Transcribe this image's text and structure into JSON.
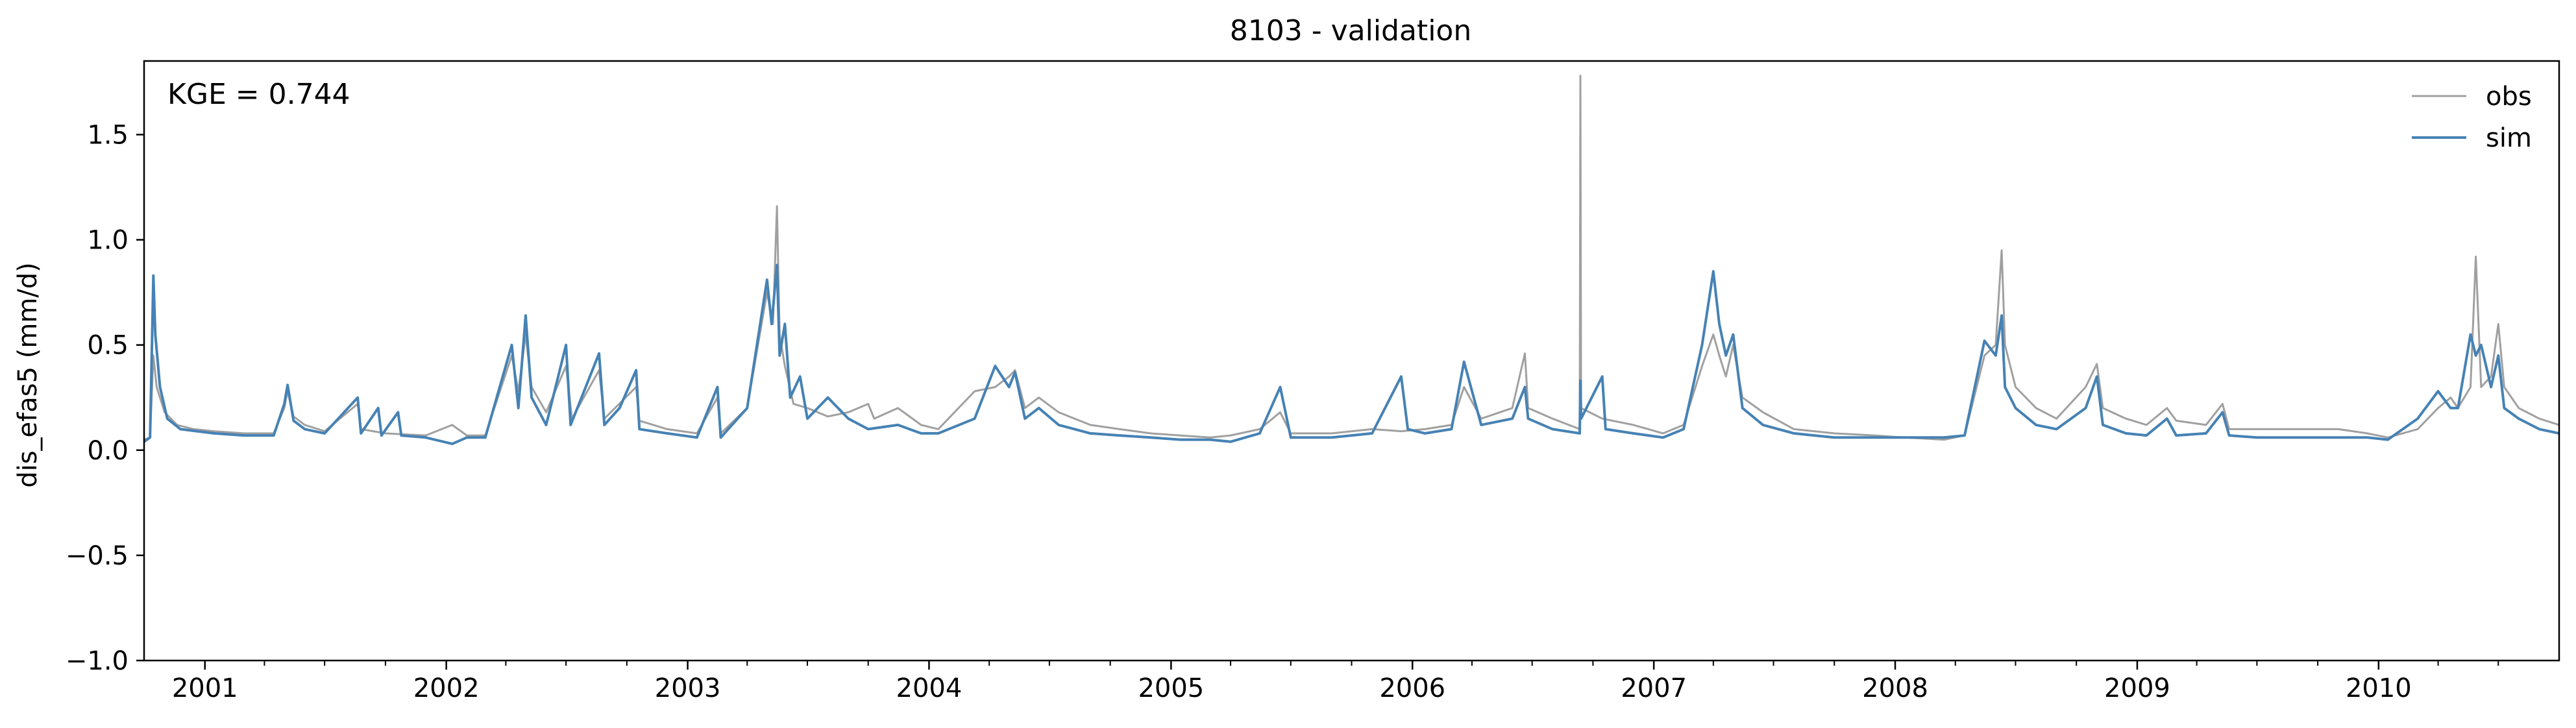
{
  "chart_data": {
    "type": "line",
    "title": "8103 - validation",
    "xlabel": "",
    "ylabel": "dis_efas5 (mm/d)",
    "annotation": "KGE = 0.744",
    "legend_position": "top-right",
    "grid": false,
    "xlim": [
      "2000-10-01",
      "2010-10-01"
    ],
    "ylim": [
      -1.0,
      1.85
    ],
    "yticks": [
      -1.0,
      -0.5,
      0.0,
      0.5,
      1.0,
      1.5
    ],
    "ytick_labels": [
      "−1.0",
      "−0.5",
      "0.0",
      "0.5",
      "1.0",
      "1.5"
    ],
    "xticks": [
      "2001-01-01",
      "2002-01-01",
      "2003-01-01",
      "2004-01-01",
      "2005-01-01",
      "2006-01-01",
      "2007-01-01",
      "2008-01-01",
      "2009-01-01",
      "2010-01-01"
    ],
    "xtick_labels": [
      "2001",
      "2002",
      "2003",
      "2004",
      "2005",
      "2006",
      "2007",
      "2008",
      "2009",
      "2010"
    ],
    "series": [
      {
        "name": "obs",
        "color": "#a0a0a0",
        "points": [
          [
            "2000-10-01",
            0.05
          ],
          [
            "2000-10-10",
            0.06
          ],
          [
            "2000-10-15",
            0.45
          ],
          [
            "2000-10-20",
            0.3
          ],
          [
            "2000-11-01",
            0.18
          ],
          [
            "2000-11-20",
            0.12
          ],
          [
            "2000-12-15",
            0.1
          ],
          [
            "2001-01-15",
            0.09
          ],
          [
            "2001-03-01",
            0.08
          ],
          [
            "2001-04-15",
            0.08
          ],
          [
            "2001-05-01",
            0.2
          ],
          [
            "2001-05-06",
            0.28
          ],
          [
            "2001-05-15",
            0.16
          ],
          [
            "2001-06-01",
            0.12
          ],
          [
            "2001-07-01",
            0.09
          ],
          [
            "2001-08-20",
            0.22
          ],
          [
            "2001-08-25",
            0.1
          ],
          [
            "2001-10-01",
            0.08
          ],
          [
            "2001-12-01",
            0.07
          ],
          [
            "2002-01-10",
            0.12
          ],
          [
            "2002-02-01",
            0.07
          ],
          [
            "2002-03-01",
            0.07
          ],
          [
            "2002-04-10",
            0.45
          ],
          [
            "2002-04-20",
            0.28
          ],
          [
            "2002-05-01",
            0.55
          ],
          [
            "2002-05-10",
            0.3
          ],
          [
            "2002-06-01",
            0.18
          ],
          [
            "2002-07-01",
            0.4
          ],
          [
            "2002-07-10",
            0.15
          ],
          [
            "2002-08-20",
            0.38
          ],
          [
            "2002-08-28",
            0.15
          ],
          [
            "2002-10-15",
            0.3
          ],
          [
            "2002-10-20",
            0.14
          ],
          [
            "2002-12-01",
            0.1
          ],
          [
            "2003-01-15",
            0.08
          ],
          [
            "2003-02-15",
            0.25
          ],
          [
            "2003-02-20",
            0.08
          ],
          [
            "2003-04-01",
            0.2
          ],
          [
            "2003-05-01",
            0.75
          ],
          [
            "2003-05-10",
            0.6
          ],
          [
            "2003-05-16",
            1.16
          ],
          [
            "2003-05-20",
            0.55
          ],
          [
            "2003-05-28",
            0.4
          ],
          [
            "2003-06-10",
            0.22
          ],
          [
            "2003-07-01",
            0.2
          ],
          [
            "2003-08-01",
            0.16
          ],
          [
            "2003-09-01",
            0.18
          ],
          [
            "2003-10-01",
            0.22
          ],
          [
            "2003-10-10",
            0.15
          ],
          [
            "2003-11-15",
            0.2
          ],
          [
            "2003-12-20",
            0.12
          ],
          [
            "2004-01-15",
            0.1
          ],
          [
            "2004-03-10",
            0.28
          ],
          [
            "2004-04-10",
            0.3
          ],
          [
            "2004-05-01",
            0.35
          ],
          [
            "2004-05-10",
            0.38
          ],
          [
            "2004-05-25",
            0.2
          ],
          [
            "2004-06-15",
            0.25
          ],
          [
            "2004-07-15",
            0.18
          ],
          [
            "2004-09-01",
            0.12
          ],
          [
            "2004-10-15",
            0.1
          ],
          [
            "2004-12-01",
            0.08
          ],
          [
            "2005-01-15",
            0.07
          ],
          [
            "2005-03-01",
            0.06
          ],
          [
            "2005-04-01",
            0.07
          ],
          [
            "2005-05-15",
            0.1
          ],
          [
            "2005-06-15",
            0.18
          ],
          [
            "2005-07-01",
            0.08
          ],
          [
            "2005-09-01",
            0.08
          ],
          [
            "2005-11-01",
            0.1
          ],
          [
            "2005-12-15",
            0.09
          ],
          [
            "2006-01-20",
            0.1
          ],
          [
            "2006-03-01",
            0.12
          ],
          [
            "2006-03-20",
            0.3
          ],
          [
            "2006-04-15",
            0.15
          ],
          [
            "2006-06-01",
            0.2
          ],
          [
            "2006-06-20",
            0.46
          ],
          [
            "2006-06-25",
            0.2
          ],
          [
            "2006-08-01",
            0.15
          ],
          [
            "2006-09-11",
            0.1
          ],
          [
            "2006-09-12",
            1.78
          ],
          [
            "2006-09-13",
            0.2
          ],
          [
            "2006-10-15",
            0.15
          ],
          [
            "2006-12-01",
            0.12
          ],
          [
            "2007-01-15",
            0.08
          ],
          [
            "2007-02-15",
            0.12
          ],
          [
            "2007-03-15",
            0.4
          ],
          [
            "2007-04-01",
            0.55
          ],
          [
            "2007-04-10",
            0.45
          ],
          [
            "2007-04-20",
            0.35
          ],
          [
            "2007-05-01",
            0.5
          ],
          [
            "2007-05-15",
            0.25
          ],
          [
            "2007-06-15",
            0.18
          ],
          [
            "2007-08-01",
            0.1
          ],
          [
            "2007-10-01",
            0.08
          ],
          [
            "2007-12-01",
            0.07
          ],
          [
            "2008-01-15",
            0.06
          ],
          [
            "2008-03-15",
            0.05
          ],
          [
            "2008-04-15",
            0.07
          ],
          [
            "2008-05-15",
            0.45
          ],
          [
            "2008-06-01",
            0.5
          ],
          [
            "2008-06-10",
            0.95
          ],
          [
            "2008-06-15",
            0.5
          ],
          [
            "2008-07-01",
            0.3
          ],
          [
            "2008-08-01",
            0.2
          ],
          [
            "2008-09-01",
            0.15
          ],
          [
            "2008-10-15",
            0.3
          ],
          [
            "2008-11-01",
            0.41
          ],
          [
            "2008-11-10",
            0.2
          ],
          [
            "2008-12-15",
            0.15
          ],
          [
            "2009-01-15",
            0.12
          ],
          [
            "2009-02-15",
            0.2
          ],
          [
            "2009-03-01",
            0.14
          ],
          [
            "2009-04-15",
            0.12
          ],
          [
            "2009-05-10",
            0.22
          ],
          [
            "2009-05-20",
            0.1
          ],
          [
            "2009-07-01",
            0.1
          ],
          [
            "2009-09-01",
            0.1
          ],
          [
            "2009-11-01",
            0.1
          ],
          [
            "2009-12-15",
            0.08
          ],
          [
            "2010-01-15",
            0.06
          ],
          [
            "2010-03-01",
            0.1
          ],
          [
            "2010-04-01",
            0.2
          ],
          [
            "2010-04-20",
            0.25
          ],
          [
            "2010-05-01",
            0.2
          ],
          [
            "2010-05-20",
            0.3
          ],
          [
            "2010-05-28",
            0.92
          ],
          [
            "2010-06-05",
            0.3
          ],
          [
            "2010-06-20",
            0.35
          ],
          [
            "2010-07-01",
            0.6
          ],
          [
            "2010-07-10",
            0.3
          ],
          [
            "2010-08-01",
            0.2
          ],
          [
            "2010-09-01",
            0.15
          ],
          [
            "2010-10-01",
            0.12
          ]
        ]
      },
      {
        "name": "sim",
        "color": "#4682b4",
        "points": [
          [
            "2000-10-01",
            0.04
          ],
          [
            "2000-10-10",
            0.06
          ],
          [
            "2000-10-15",
            0.83
          ],
          [
            "2000-10-18",
            0.55
          ],
          [
            "2000-10-25",
            0.3
          ],
          [
            "2000-11-05",
            0.15
          ],
          [
            "2000-11-25",
            0.1
          ],
          [
            "2000-12-20",
            0.09
          ],
          [
            "2001-01-15",
            0.08
          ],
          [
            "2001-03-01",
            0.07
          ],
          [
            "2001-04-15",
            0.07
          ],
          [
            "2001-05-01",
            0.22
          ],
          [
            "2001-05-06",
            0.31
          ],
          [
            "2001-05-15",
            0.14
          ],
          [
            "2001-06-01",
            0.1
          ],
          [
            "2001-07-01",
            0.08
          ],
          [
            "2001-08-20",
            0.25
          ],
          [
            "2001-08-25",
            0.08
          ],
          [
            "2001-09-20",
            0.2
          ],
          [
            "2001-09-25",
            0.07
          ],
          [
            "2001-10-20",
            0.18
          ],
          [
            "2001-10-25",
            0.07
          ],
          [
            "2001-12-01",
            0.06
          ],
          [
            "2002-01-10",
            0.03
          ],
          [
            "2002-02-01",
            0.06
          ],
          [
            "2002-03-01",
            0.06
          ],
          [
            "2002-04-10",
            0.5
          ],
          [
            "2002-04-20",
            0.2
          ],
          [
            "2002-05-01",
            0.64
          ],
          [
            "2002-05-10",
            0.25
          ],
          [
            "2002-06-01",
            0.12
          ],
          [
            "2002-07-01",
            0.5
          ],
          [
            "2002-07-08",
            0.12
          ],
          [
            "2002-08-20",
            0.46
          ],
          [
            "2002-08-28",
            0.12
          ],
          [
            "2002-09-20",
            0.2
          ],
          [
            "2002-10-15",
            0.38
          ],
          [
            "2002-10-20",
            0.1
          ],
          [
            "2002-12-01",
            0.08
          ],
          [
            "2003-01-15",
            0.06
          ],
          [
            "2003-02-15",
            0.3
          ],
          [
            "2003-02-20",
            0.06
          ],
          [
            "2003-04-01",
            0.2
          ],
          [
            "2003-05-01",
            0.81
          ],
          [
            "2003-05-08",
            0.6
          ],
          [
            "2003-05-16",
            0.88
          ],
          [
            "2003-05-20",
            0.45
          ],
          [
            "2003-05-28",
            0.6
          ],
          [
            "2003-06-05",
            0.25
          ],
          [
            "2003-06-20",
            0.35
          ],
          [
            "2003-07-01",
            0.15
          ],
          [
            "2003-08-01",
            0.25
          ],
          [
            "2003-09-01",
            0.15
          ],
          [
            "2003-10-01",
            0.1
          ],
          [
            "2003-11-15",
            0.12
          ],
          [
            "2003-12-20",
            0.08
          ],
          [
            "2004-01-15",
            0.08
          ],
          [
            "2004-03-10",
            0.15
          ],
          [
            "2004-04-10",
            0.4
          ],
          [
            "2004-05-01",
            0.3
          ],
          [
            "2004-05-10",
            0.37
          ],
          [
            "2004-05-25",
            0.15
          ],
          [
            "2004-06-15",
            0.2
          ],
          [
            "2004-07-15",
            0.12
          ],
          [
            "2004-09-01",
            0.08
          ],
          [
            "2004-10-15",
            0.07
          ],
          [
            "2004-12-01",
            0.06
          ],
          [
            "2005-01-15",
            0.05
          ],
          [
            "2005-03-01",
            0.05
          ],
          [
            "2005-04-01",
            0.04
          ],
          [
            "2005-05-15",
            0.08
          ],
          [
            "2005-06-15",
            0.3
          ],
          [
            "2005-07-01",
            0.06
          ],
          [
            "2005-09-01",
            0.06
          ],
          [
            "2005-11-01",
            0.08
          ],
          [
            "2005-12-15",
            0.35
          ],
          [
            "2005-12-25",
            0.1
          ],
          [
            "2006-01-20",
            0.08
          ],
          [
            "2006-03-01",
            0.1
          ],
          [
            "2006-03-20",
            0.42
          ],
          [
            "2006-04-15",
            0.12
          ],
          [
            "2006-06-01",
            0.15
          ],
          [
            "2006-06-20",
            0.3
          ],
          [
            "2006-06-25",
            0.15
          ],
          [
            "2006-08-01",
            0.1
          ],
          [
            "2006-09-11",
            0.08
          ],
          [
            "2006-09-12",
            0.33
          ],
          [
            "2006-09-13",
            0.15
          ],
          [
            "2006-10-15",
            0.35
          ],
          [
            "2006-10-20",
            0.1
          ],
          [
            "2006-12-01",
            0.08
          ],
          [
            "2007-01-15",
            0.06
          ],
          [
            "2007-02-15",
            0.1
          ],
          [
            "2007-03-15",
            0.5
          ],
          [
            "2007-04-01",
            0.85
          ],
          [
            "2007-04-10",
            0.6
          ],
          [
            "2007-04-20",
            0.45
          ],
          [
            "2007-05-01",
            0.55
          ],
          [
            "2007-05-15",
            0.2
          ],
          [
            "2007-06-15",
            0.12
          ],
          [
            "2007-08-01",
            0.08
          ],
          [
            "2007-10-01",
            0.06
          ],
          [
            "2007-12-01",
            0.06
          ],
          [
            "2008-01-15",
            0.06
          ],
          [
            "2008-03-15",
            0.06
          ],
          [
            "2008-04-15",
            0.07
          ],
          [
            "2008-05-15",
            0.52
          ],
          [
            "2008-06-01",
            0.45
          ],
          [
            "2008-06-10",
            0.64
          ],
          [
            "2008-06-15",
            0.3
          ],
          [
            "2008-07-01",
            0.2
          ],
          [
            "2008-08-01",
            0.12
          ],
          [
            "2008-09-01",
            0.1
          ],
          [
            "2008-10-15",
            0.2
          ],
          [
            "2008-11-01",
            0.35
          ],
          [
            "2008-11-10",
            0.12
          ],
          [
            "2008-12-15",
            0.08
          ],
          [
            "2009-01-15",
            0.07
          ],
          [
            "2009-02-15",
            0.15
          ],
          [
            "2009-03-01",
            0.07
          ],
          [
            "2009-04-15",
            0.08
          ],
          [
            "2009-05-10",
            0.18
          ],
          [
            "2009-05-20",
            0.07
          ],
          [
            "2009-07-01",
            0.06
          ],
          [
            "2009-09-01",
            0.06
          ],
          [
            "2009-11-01",
            0.06
          ],
          [
            "2009-12-15",
            0.06
          ],
          [
            "2010-01-15",
            0.05
          ],
          [
            "2010-03-01",
            0.15
          ],
          [
            "2010-04-01",
            0.28
          ],
          [
            "2010-04-20",
            0.2
          ],
          [
            "2010-05-01",
            0.2
          ],
          [
            "2010-05-20",
            0.55
          ],
          [
            "2010-05-28",
            0.45
          ],
          [
            "2010-06-05",
            0.5
          ],
          [
            "2010-06-20",
            0.3
          ],
          [
            "2010-07-01",
            0.45
          ],
          [
            "2010-07-10",
            0.2
          ],
          [
            "2010-08-01",
            0.15
          ],
          [
            "2010-09-01",
            0.1
          ],
          [
            "2010-10-01",
            0.08
          ]
        ]
      }
    ]
  }
}
